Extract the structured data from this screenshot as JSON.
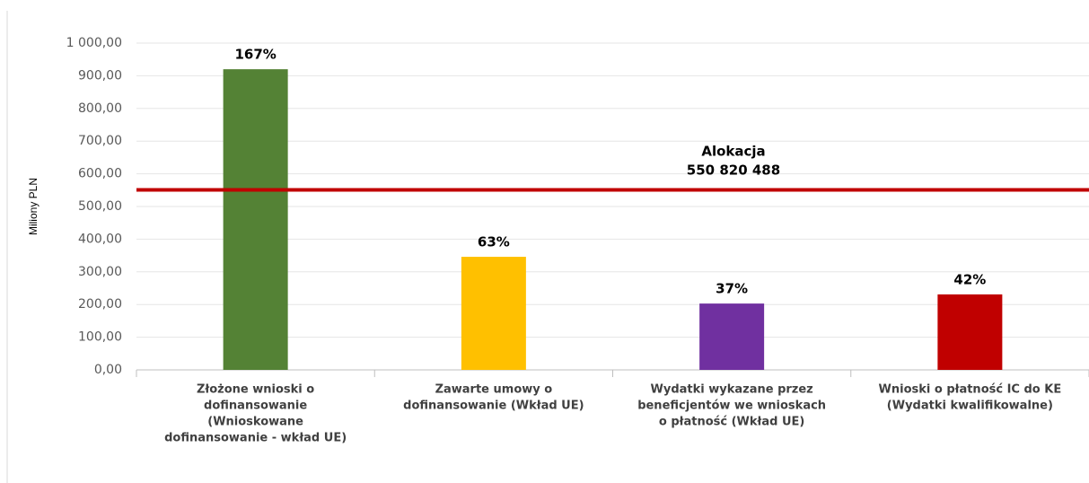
{
  "chart_data": {
    "type": "bar",
    "y_label": "Miliony PLN",
    "categories": [
      [
        "Złożone wnioski o",
        "dofinansowanie",
        "(Wnioskowane",
        "dofinansowanie - wkład UE)"
      ],
      [
        "Zawarte umowy o",
        "dofinansowanie (Wkład UE)"
      ],
      [
        "Wydatki wykazane przez",
        "beneficjentów we wnioskach",
        "o płatność (Wkład UE)"
      ],
      [
        "Wnioski o płatność IC do KE",
        "(Wydatki kwalifikowalne)"
      ]
    ],
    "values": [
      920,
      346,
      203,
      231
    ],
    "data_labels": [
      "167%",
      "63%",
      "37%",
      "42%"
    ],
    "colors": [
      "#548235",
      "#ffc000",
      "#7030a0",
      "#c00000"
    ],
    "allocation": {
      "value": 550.820488,
      "title": "Alokacja",
      "label": "550 820 488",
      "color": "#c00000"
    },
    "ylim": [
      0,
      1000
    ],
    "yticks": [
      {
        "value": 0,
        "label": "0,00"
      },
      {
        "value": 100,
        "label": "100,00"
      },
      {
        "value": 200,
        "label": "200,00"
      },
      {
        "value": 300,
        "label": "300,00"
      },
      {
        "value": 400,
        "label": "400,00"
      },
      {
        "value": 500,
        "label": "500,00"
      },
      {
        "value": 600,
        "label": "600,00"
      },
      {
        "value": 700,
        "label": "700,00"
      },
      {
        "value": 800,
        "label": "800,00"
      },
      {
        "value": 900,
        "label": "900,00"
      },
      {
        "value": 1000,
        "label": "1 000,00"
      }
    ],
    "grid": true
  }
}
